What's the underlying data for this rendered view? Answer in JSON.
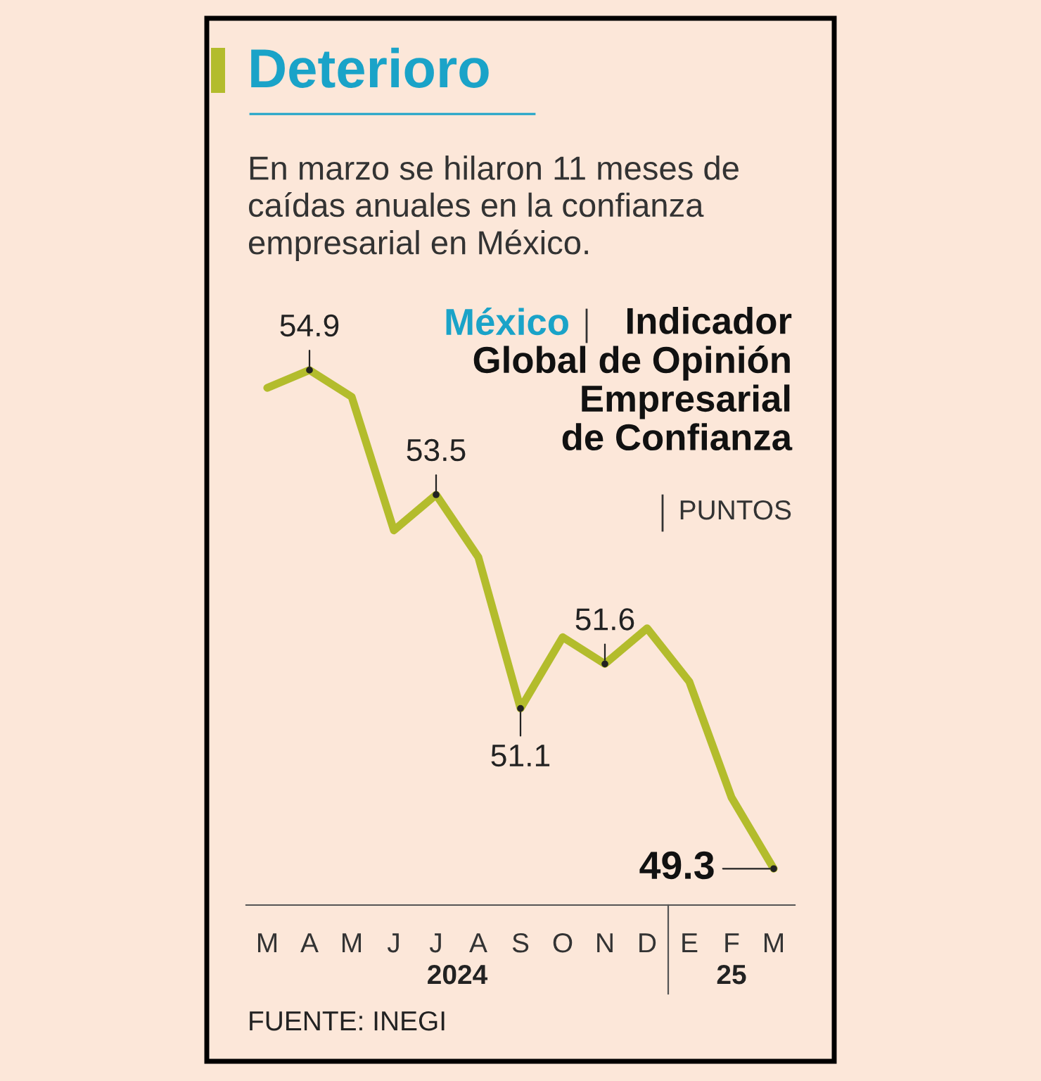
{
  "chart_data": {
    "type": "line",
    "title": "Deterioro",
    "subtitle": "En marzo se hilaron 11 meses de\ncaídas anuales en la confianza\nempresarial en México.",
    "ylabel": "PUNTOS",
    "categories": [
      "M",
      "A",
      "M",
      "J",
      "J",
      "A",
      "S",
      "O",
      "N",
      "D",
      "E",
      "F",
      "M"
    ],
    "series": [
      {
        "color": "#b3bc2c",
        "values": [
          54.7,
          54.9,
          54.6,
          53.1,
          53.5,
          52.8,
          51.1,
          51.9,
          51.6,
          52.0,
          51.4,
          50.1,
          49.3
        ],
        "value_labels": [
          null,
          "54.9",
          null,
          null,
          "53.5",
          null,
          "51.1",
          null,
          "51.6",
          null,
          null,
          null,
          "49.3"
        ]
      }
    ],
    "relative": false,
    "annotations": [
      "México",
      "Indicador\nGlobal de Opinión\nEmpresarial\nde Confianza",
      "2024",
      "25",
      "FUENTE: INEGI"
    ],
    "grid": false,
    "marker": "none",
    "line_style": "solid"
  }
}
